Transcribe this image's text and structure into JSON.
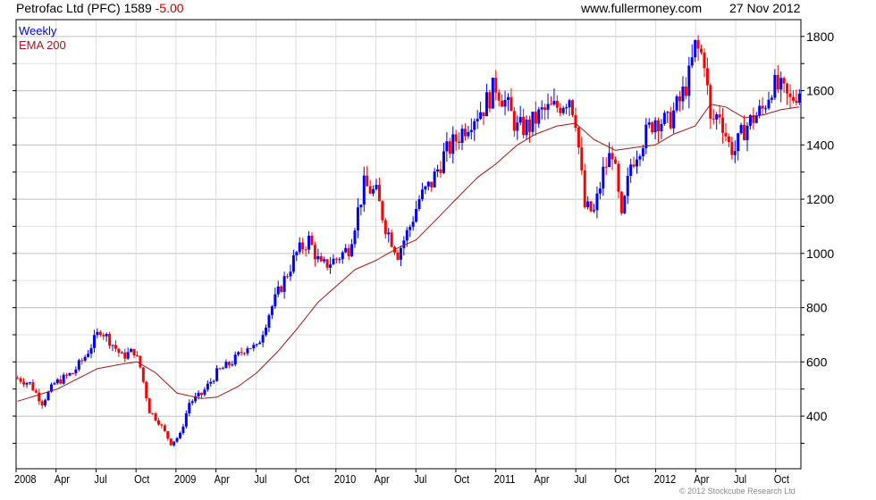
{
  "header": {
    "title": "Petrofac Ltd (PFC) 1589",
    "change": "-5.00",
    "site": "www.fullermoney.com",
    "date": "27 Nov 2012"
  },
  "legend": {
    "weekly": "Weekly",
    "ema": "EMA 200"
  },
  "copyright": "© 2012 Stockcube Research Ltd",
  "colors": {
    "up": "#0000ff",
    "down": "#ff0000",
    "ema": "#a01818"
  },
  "chart_data": {
    "type": "candlestick",
    "title": "Petrofac Ltd (PFC) 1589 -5.00",
    "frequency": "Weekly",
    "y_ticks": [
      400,
      600,
      800,
      1000,
      1200,
      1400,
      1600,
      1800
    ],
    "ylim": [
      206,
      1862
    ],
    "x_ticks": [
      "2008",
      "Apr",
      "Jul",
      "Oct",
      "2009",
      "Apr",
      "Jul",
      "Oct",
      "2010",
      "Apr",
      "Jul",
      "Oct",
      "2011",
      "Apr",
      "Jul",
      "Oct",
      "2012",
      "Apr",
      "Jul",
      "Oct"
    ],
    "weeks_total": 256,
    "close_keypoints_week_value": [
      [
        0,
        540
      ],
      [
        4,
        520
      ],
      [
        8,
        450
      ],
      [
        12,
        520
      ],
      [
        18,
        560
      ],
      [
        22,
        620
      ],
      [
        27,
        720
      ],
      [
        30,
        680
      ],
      [
        34,
        620
      ],
      [
        38,
        640
      ],
      [
        40,
        580
      ],
      [
        43,
        420
      ],
      [
        46,
        380
      ],
      [
        50,
        300
      ],
      [
        53,
        330
      ],
      [
        56,
        450
      ],
      [
        60,
        480
      ],
      [
        65,
        560
      ],
      [
        70,
        600
      ],
      [
        75,
        660
      ],
      [
        78,
        650
      ],
      [
        82,
        780
      ],
      [
        86,
        880
      ],
      [
        91,
        1000
      ],
      [
        95,
        1050
      ],
      [
        99,
        950
      ],
      [
        104,
        980
      ],
      [
        108,
        1020
      ],
      [
        113,
        1250
      ],
      [
        117,
        1220
      ],
      [
        120,
        1100
      ],
      [
        124,
        1000
      ],
      [
        128,
        1100
      ],
      [
        131,
        1200
      ],
      [
        135,
        1260
      ],
      [
        139,
        1360
      ],
      [
        143,
        1420
      ],
      [
        148,
        1500
      ],
      [
        152,
        1540
      ],
      [
        156,
        1620
      ],
      [
        159,
        1560
      ],
      [
        163,
        1460
      ],
      [
        167,
        1470
      ],
      [
        171,
        1520
      ],
      [
        176,
        1540
      ],
      [
        180,
        1580
      ],
      [
        182,
        1500
      ],
      [
        185,
        1170
      ],
      [
        188,
        1150
      ],
      [
        191,
        1300
      ],
      [
        194,
        1380
      ],
      [
        197,
        1120
      ],
      [
        200,
        1330
      ],
      [
        203,
        1400
      ],
      [
        206,
        1460
      ],
      [
        208,
        1500
      ],
      [
        212,
        1480
      ],
      [
        216,
        1560
      ],
      [
        219,
        1650
      ],
      [
        221,
        1760
      ],
      [
        224,
        1720
      ],
      [
        226,
        1480
      ],
      [
        229,
        1520
      ],
      [
        232,
        1400
      ],
      [
        234,
        1380
      ],
      [
        237,
        1460
      ],
      [
        240,
        1500
      ],
      [
        243,
        1530
      ],
      [
        246,
        1620
      ],
      [
        249,
        1600
      ],
      [
        252,
        1560
      ],
      [
        254,
        1594
      ],
      [
        255,
        1589
      ]
    ],
    "ema200_keypoints_week_value": [
      [
        0,
        455
      ],
      [
        13,
        500
      ],
      [
        26,
        575
      ],
      [
        33,
        590
      ],
      [
        39,
        600
      ],
      [
        45,
        560
      ],
      [
        52,
        485
      ],
      [
        60,
        465
      ],
      [
        65,
        470
      ],
      [
        72,
        510
      ],
      [
        78,
        560
      ],
      [
        85,
        640
      ],
      [
        91,
        720
      ],
      [
        98,
        820
      ],
      [
        104,
        880
      ],
      [
        110,
        940
      ],
      [
        117,
        975
      ],
      [
        124,
        1020
      ],
      [
        130,
        1050
      ],
      [
        137,
        1130
      ],
      [
        143,
        1200
      ],
      [
        150,
        1280
      ],
      [
        156,
        1330
      ],
      [
        163,
        1400
      ],
      [
        169,
        1440
      ],
      [
        176,
        1470
      ],
      [
        182,
        1480
      ],
      [
        188,
        1420
      ],
      [
        195,
        1380
      ],
      [
        201,
        1390
      ],
      [
        208,
        1400
      ],
      [
        214,
        1440
      ],
      [
        221,
        1470
      ],
      [
        226,
        1550
      ],
      [
        231,
        1540
      ],
      [
        237,
        1500
      ],
      [
        243,
        1510
      ],
      [
        249,
        1530
      ],
      [
        255,
        1540
      ]
    ]
  }
}
